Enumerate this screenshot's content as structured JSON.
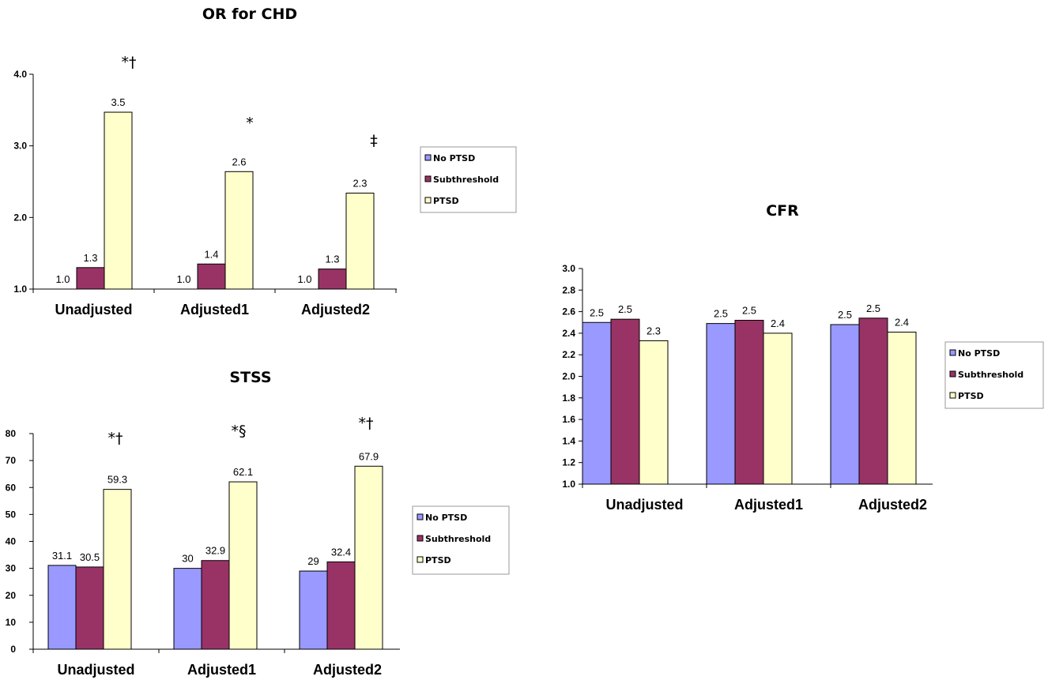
{
  "colors": {
    "no_ptsd": "#9999ff",
    "subthreshold": "#993366",
    "ptsd": "#ffffcc",
    "outline": "#000000"
  },
  "chart_data": [
    {
      "type": "bar",
      "title": "OR for CHD",
      "categories": [
        "Unadjusted",
        "Adjusted1",
        "Adjusted2"
      ],
      "series": [
        {
          "name": "No PTSD",
          "values": [
            1.0,
            1.0,
            1.0
          ],
          "labels": [
            "1.0",
            "1.0",
            "1.0"
          ]
        },
        {
          "name": "Subthreshold",
          "values": [
            1.3,
            1.35,
            1.28
          ],
          "labels": [
            "1.3",
            "1.4",
            "1.3"
          ]
        },
        {
          "name": "PTSD",
          "values": [
            3.47,
            2.64,
            2.34
          ],
          "labels": [
            "3.5",
            "2.6",
            "2.3"
          ]
        }
      ],
      "yticks": [
        "1.0",
        "2.0",
        "3.0",
        "4.0"
      ],
      "ylim": [
        1.0,
        4.0
      ],
      "annotations": [
        "*†",
        "*",
        "‡"
      ],
      "legend": "right",
      "grid": false
    },
    {
      "type": "bar",
      "title": "CFR",
      "categories": [
        "Unadjusted",
        "Adjusted1",
        "Adjusted2"
      ],
      "series": [
        {
          "name": "No PTSD",
          "values": [
            2.5,
            2.49,
            2.48
          ],
          "labels": [
            "2.5",
            "2.5",
            "2.5"
          ]
        },
        {
          "name": "Subthreshold",
          "values": [
            2.53,
            2.52,
            2.54
          ],
          "labels": [
            "2.5",
            "2.5",
            "2.5"
          ]
        },
        {
          "name": "PTSD",
          "values": [
            2.33,
            2.4,
            2.41
          ],
          "labels": [
            "2.3",
            "2.4",
            "2.4"
          ]
        }
      ],
      "yticks": [
        "1.0",
        "1.2",
        "1.4",
        "1.6",
        "1.8",
        "2.0",
        "2.2",
        "2.4",
        "2.6",
        "2.8",
        "3.0"
      ],
      "ylim": [
        1.0,
        3.0
      ],
      "annotations": [],
      "legend": "right",
      "grid": false
    },
    {
      "type": "bar",
      "title": "STSS",
      "categories": [
        "Unadjusted",
        "Adjusted1",
        "Adjusted2"
      ],
      "series": [
        {
          "name": "No PTSD",
          "values": [
            31.1,
            30,
            29
          ],
          "labels": [
            "31.1",
            "30",
            "29"
          ]
        },
        {
          "name": "Subthreshold",
          "values": [
            30.5,
            32.9,
            32.4
          ],
          "labels": [
            "30.5",
            "32.9",
            "32.4"
          ]
        },
        {
          "name": "PTSD",
          "values": [
            59.3,
            62.1,
            67.9
          ],
          "labels": [
            "59.3",
            "62.1",
            "67.9"
          ]
        }
      ],
      "yticks": [
        "0",
        "10",
        "20",
        "30",
        "40",
        "50",
        "60",
        "70",
        "80"
      ],
      "ylim": [
        0,
        80
      ],
      "annotations": [
        "*†",
        "*§",
        "*†"
      ],
      "legend": "right",
      "grid": false
    }
  ]
}
